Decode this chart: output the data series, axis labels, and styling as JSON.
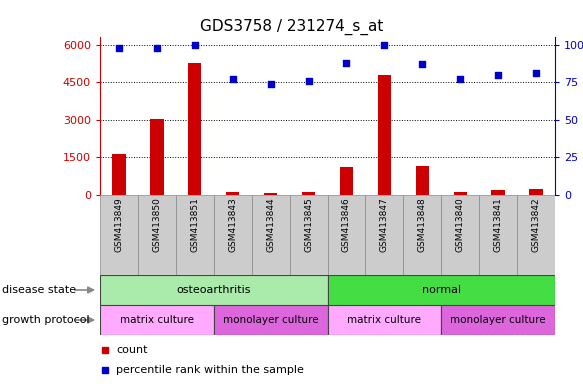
{
  "title": "GDS3758 / 231274_s_at",
  "samples": [
    "GSM413849",
    "GSM413850",
    "GSM413851",
    "GSM413843",
    "GSM413844",
    "GSM413845",
    "GSM413846",
    "GSM413847",
    "GSM413848",
    "GSM413840",
    "GSM413841",
    "GSM413842"
  ],
  "counts": [
    1650,
    3050,
    5250,
    120,
    80,
    130,
    1100,
    4800,
    1150,
    120,
    200,
    230
  ],
  "percentile": [
    98,
    98,
    100,
    77,
    74,
    76,
    88,
    100,
    87,
    77,
    80,
    81
  ],
  "disease_state": [
    {
      "label": "osteoarthritis",
      "start": 0,
      "end": 6,
      "color": "#AAEAAA"
    },
    {
      "label": "normal",
      "start": 6,
      "end": 12,
      "color": "#44DD44"
    }
  ],
  "growth_protocol": [
    {
      "label": "matrix culture",
      "start": 0,
      "end": 3,
      "color": "#FFAAFF"
    },
    {
      "label": "monolayer culture",
      "start": 3,
      "end": 6,
      "color": "#DD66DD"
    },
    {
      "label": "matrix culture",
      "start": 6,
      "end": 9,
      "color": "#FFAAFF"
    },
    {
      "label": "monolayer culture",
      "start": 9,
      "end": 12,
      "color": "#DD66DD"
    }
  ],
  "bar_color": "#CC0000",
  "dot_color": "#0000CC",
  "left_yticks": [
    0,
    1500,
    3000,
    4500,
    6000
  ],
  "left_ylim": [
    0,
    6300
  ],
  "right_yticks": [
    0,
    25,
    50,
    75,
    100
  ],
  "right_ylim": [
    0,
    105
  ],
  "left_axis_color": "#CC0000",
  "right_axis_color": "#0000CC",
  "background_color": "#FFFFFF",
  "grid_color": "#000000",
  "label_disease": "disease state",
  "label_growth": "growth protocol",
  "legend_count": "count",
  "legend_percentile": "percentile rank within the sample",
  "xticklabel_bg": "#CCCCCC"
}
